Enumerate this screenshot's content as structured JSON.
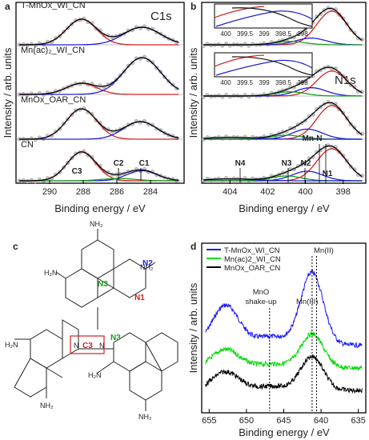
{
  "panels": {
    "a": {
      "letter": "a",
      "corner": "C1s",
      "xlabel": "Binding energy / eV",
      "ylabel": "Intensity / arb. units",
      "xlim": [
        292,
        282
      ],
      "xticks": [
        290,
        288,
        286,
        284
      ],
      "traces": [
        {
          "name": "T-MnOx_WI_CN",
          "peaks": [
            [
              288.1,
              0.9,
              0.8
            ],
            [
              284.5,
              1.1,
              0.55
            ]
          ]
        },
        {
          "name": "Mn(ac)₂_WI_CN",
          "peaks": [
            [
              288.1,
              0.9,
              0.3
            ],
            [
              284.5,
              1.1,
              1.0
            ]
          ]
        },
        {
          "name": "MnOx_OAR_CN",
          "peaks": [
            [
              288.1,
              0.9,
              0.95
            ],
            [
              284.6,
              1.0,
              0.55
            ]
          ]
        },
        {
          "name": "CN",
          "peaks": [
            [
              288.1,
              0.85,
              1.0
            ],
            [
              284.5,
              0.9,
              0.35
            ],
            [
              285.9,
              1.0,
              0.08
            ]
          ]
        }
      ],
      "annotations": [
        "C3",
        "C2",
        "C1"
      ]
    },
    "b": {
      "letter": "b",
      "corner": "N1s",
      "xlabel": "Binding energy / eV",
      "ylabel": "Intensity / arb. units",
      "xlim": [
        405.5,
        396.8
      ],
      "xticks": [
        404,
        402,
        400,
        398
      ],
      "inset_ticks": [
        "400",
        "399.5",
        "399",
        "398.5",
        "398"
      ],
      "traces": [
        {
          "peaks": [
            [
              398.6,
              0.8,
              1.0
            ],
            [
              399.7,
              0.8,
              0.2
            ],
            [
              400.8,
              0.8,
              0.1
            ]
          ]
        },
        {
          "peaks": [
            [
              398.6,
              0.8,
              0.6
            ],
            [
              399.7,
              0.8,
              0.2
            ],
            [
              400.8,
              0.8,
              0.1
            ]
          ]
        },
        {
          "peaks": [
            [
              398.6,
              0.8,
              1.0
            ],
            [
              399.9,
              0.8,
              0.3
            ],
            [
              401.0,
              0.8,
              0.12
            ],
            [
              404.0,
              1.2,
              0.05
            ]
          ]
        },
        {
          "peaks": [
            [
              398.6,
              0.8,
              1.0
            ],
            [
              399.9,
              0.8,
              0.3
            ],
            [
              401.0,
              0.8,
              0.15
            ],
            [
              404.0,
              1.2,
              0.06
            ]
          ]
        }
      ],
      "annotations": [
        "N4",
        "N3",
        "N2",
        "N1",
        "Mn-N"
      ]
    },
    "c": {
      "letter": "c",
      "labels": {
        "n1": "N1",
        "n2": "N2",
        "n3a": "N3",
        "n3b": "N3",
        "c3": "C3"
      },
      "atoms": {
        "h2n": "H₂N",
        "nh2": "NH₂",
        "n": "N"
      }
    },
    "d": {
      "letter": "d",
      "xlabel": "Binding energy / eV",
      "ylabel": "Intensity / arb. units",
      "xlim": [
        656,
        634
      ],
      "xticks": [
        655,
        650,
        645,
        640,
        635
      ],
      "legend": [
        {
          "name": "T-MnOx_WI_CN",
          "color": "#1a1aff"
        },
        {
          "name": "Mn(ac)2_WI_CN",
          "color": "#00dd00"
        },
        {
          "name": "MnOx_OAR_CN",
          "color": "#000000"
        }
      ],
      "annotations": {
        "mnii": "Mn(II)",
        "mniii": "Mn(III)",
        "mno1": "MnO",
        "mno2": "shake-up"
      },
      "dashed_lines": [
        646.9,
        641.2,
        640.6
      ]
    }
  },
  "colors": {
    "red": "#d62020",
    "blue": "#2020d0",
    "green": "#1aa01a",
    "n_blue": "#2424c8",
    "n_red": "#d62020",
    "n_green": "#1aa01a"
  }
}
